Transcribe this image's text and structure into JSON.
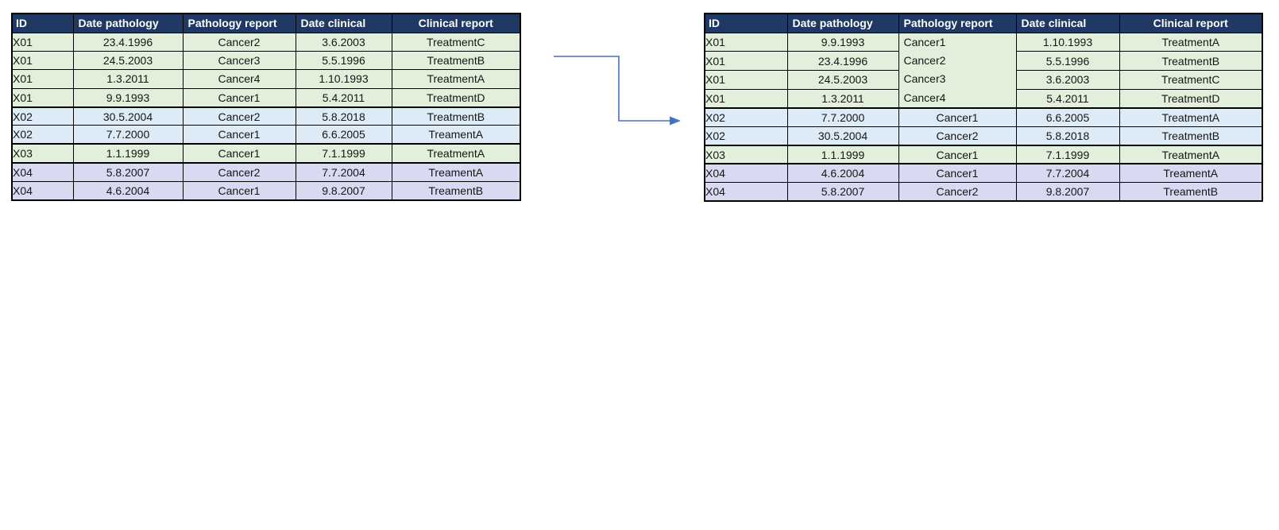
{
  "palette": {
    "header_bg": "#1F3864",
    "header_text": "#FFFFFF",
    "row_green": "#E2EFDA",
    "row_blue": "#DDEBF7",
    "row_lavender": "#D9DAF2",
    "grid_border": "#000000",
    "arrow_color": "#4472C4",
    "body_text": "#161616",
    "page_bg": "#FFFFFF"
  },
  "columns": [
    "ID",
    "Date pathology",
    "Pathology report",
    "Date clinical",
    "Clinical report"
  ],
  "group_colors": {
    "X01": "row_green",
    "X02": "row_blue",
    "X03": "row_green",
    "X04": "row_lavender"
  },
  "tables": [
    {
      "name": "left-table-unsorted",
      "rows": [
        {
          "id": "X01",
          "date_pathology": "23.4.1996",
          "pathology": "Cancer2",
          "date_clinical": "3.6.2003",
          "clinical": "TreatmentC"
        },
        {
          "id": "X01",
          "date_pathology": "24.5.2003",
          "pathology": "Cancer3",
          "date_clinical": "5.5.1996",
          "clinical": "TreatmentB"
        },
        {
          "id": "X01",
          "date_pathology": "1.3.2011",
          "pathology": "Cancer4",
          "date_clinical": "1.10.1993",
          "clinical": "TreatmentA"
        },
        {
          "id": "X01",
          "date_pathology": "9.9.1993",
          "pathology": "Cancer1",
          "date_clinical": "5.4.2011",
          "clinical": "TreatmentD"
        },
        {
          "id": "X02",
          "date_pathology": "30.5.2004",
          "pathology": "Cancer2",
          "date_clinical": "5.8.2018",
          "clinical": "TreatmentB"
        },
        {
          "id": "X02",
          "date_pathology": "7.7.2000",
          "pathology": "Cancer1",
          "date_clinical": "6.6.2005",
          "clinical": "TreamentA"
        },
        {
          "id": "X03",
          "date_pathology": "1.1.1999",
          "pathology": "Cancer1",
          "date_clinical": "7.1.1999",
          "clinical": "TreatmentA"
        },
        {
          "id": "X04",
          "date_pathology": "5.8.2007",
          "pathology": "Cancer2",
          "date_clinical": "7.7.2004",
          "clinical": "TreamentA"
        },
        {
          "id": "X04",
          "date_pathology": "4.6.2004",
          "pathology": "Cancer1",
          "date_clinical": "9.8.2007",
          "clinical": "TreamentB"
        }
      ]
    },
    {
      "name": "right-table-sorted",
      "pathology_merge": {
        "start": 0,
        "count": 4
      },
      "rows": [
        {
          "id": "X01",
          "date_pathology": "9.9.1993",
          "pathology": "Cancer1",
          "date_clinical": "1.10.1993",
          "clinical": "TreatmentA"
        },
        {
          "id": "X01",
          "date_pathology": "23.4.1996",
          "pathology": "Cancer2",
          "date_clinical": "5.5.1996",
          "clinical": "TreatmentB"
        },
        {
          "id": "X01",
          "date_pathology": "24.5.2003",
          "pathology": "Cancer3",
          "date_clinical": "3.6.2003",
          "clinical": "TreatmentC"
        },
        {
          "id": "X01",
          "date_pathology": "1.3.2011",
          "pathology": "Cancer4",
          "date_clinical": "5.4.2011",
          "clinical": "TreatmentD"
        },
        {
          "id": "X02",
          "date_pathology": "7.7.2000",
          "pathology": "Cancer1",
          "date_clinical": "6.6.2005",
          "clinical": "TreatmentA"
        },
        {
          "id": "X02",
          "date_pathology": "30.5.2004",
          "pathology": "Cancer2",
          "date_clinical": "5.8.2018",
          "clinical": "TreatmentB"
        },
        {
          "id": "X03",
          "date_pathology": "1.1.1999",
          "pathology": "Cancer1",
          "date_clinical": "7.1.1999",
          "clinical": "TreatmentA"
        },
        {
          "id": "X04",
          "date_pathology": "4.6.2004",
          "pathology": "Cancer1",
          "date_clinical": "7.7.2004",
          "clinical": "TreamentA"
        },
        {
          "id": "X04",
          "date_pathology": "5.8.2007",
          "pathology": "Cancer2",
          "date_clinical": "9.8.2007",
          "clinical": "TreamentB"
        }
      ]
    }
  ],
  "arrow": {
    "shape": "elbow-connector",
    "direction": "right-down-right"
  }
}
